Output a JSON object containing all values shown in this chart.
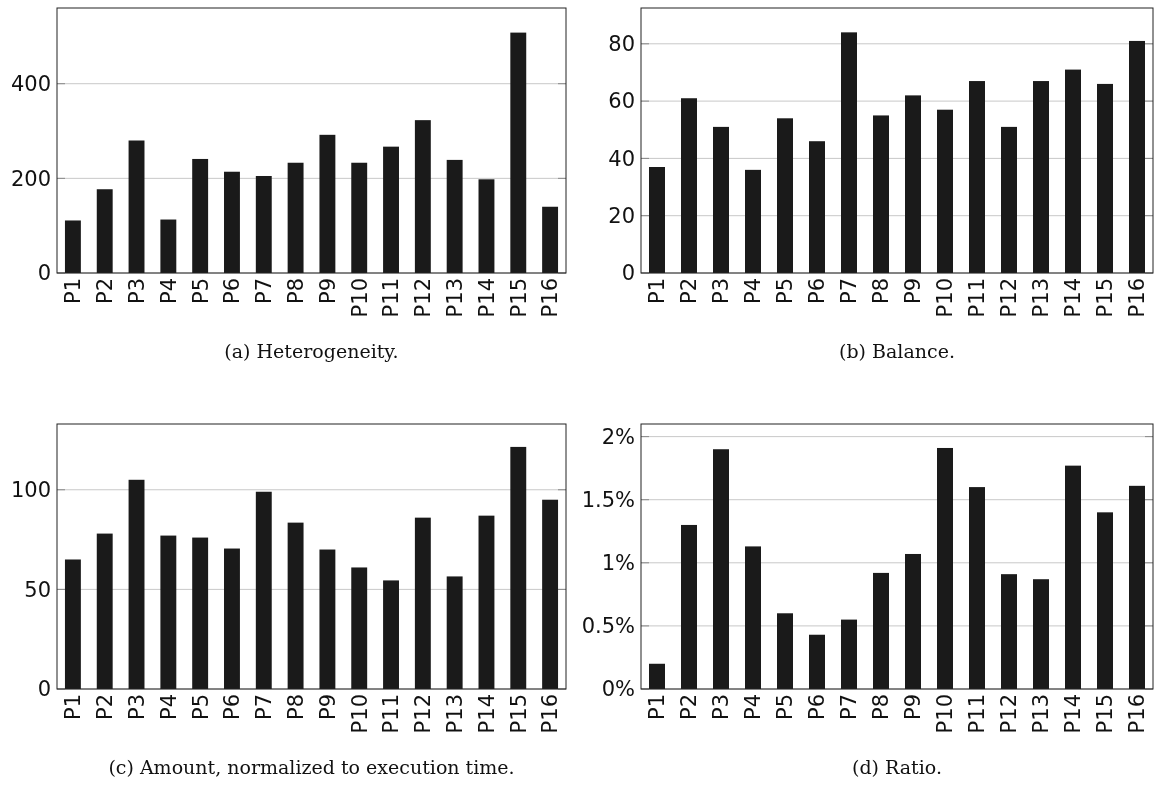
{
  "chart_data": [
    {
      "type": "bar",
      "title": "(a) Heterogeneity.",
      "categories": [
        "P1",
        "P2",
        "P3",
        "P4",
        "P5",
        "P6",
        "P7",
        "P8",
        "P9",
        "P10",
        "P11",
        "P12",
        "P13",
        "P14",
        "P15",
        "P16"
      ],
      "values": [
        111,
        177,
        280,
        113,
        241,
        214,
        205,
        233,
        292,
        233,
        267,
        323,
        239,
        198,
        508,
        140
      ],
      "color": "#1a1a1a",
      "ylim": [
        0,
        560
      ],
      "yticks": [
        0,
        200,
        400
      ],
      "grid": "y"
    },
    {
      "type": "bar",
      "title": "(b) Balance.",
      "categories": [
        "P1",
        "P2",
        "P3",
        "P4",
        "P5",
        "P6",
        "P7",
        "P8",
        "P9",
        "P10",
        "P11",
        "P12",
        "P13",
        "P14",
        "P15",
        "P16"
      ],
      "values": [
        37,
        61,
        51,
        36,
        54,
        46,
        84,
        55,
        62,
        57,
        67,
        51,
        67,
        71,
        66,
        81
      ],
      "color": "#1a1a1a",
      "ylim": [
        0,
        92.5
      ],
      "yticks": [
        0,
        20,
        40,
        60,
        80
      ],
      "grid": "y"
    },
    {
      "type": "bar",
      "title": "(c) Amount, normalized to execution time.",
      "categories": [
        "P1",
        "P2",
        "P3",
        "P4",
        "P5",
        "P6",
        "P7",
        "P8",
        "P9",
        "P10",
        "P11",
        "P12",
        "P13",
        "P14",
        "P15",
        "P16"
      ],
      "values": [
        65,
        78,
        105,
        77,
        76,
        70.5,
        99,
        83.5,
        70,
        61,
        54.5,
        86,
        56.5,
        87,
        121.5,
        95
      ],
      "color": "#1a1a1a",
      "ylim": [
        0,
        133
      ],
      "yticks": [
        0,
        50,
        100
      ],
      "grid": "y"
    },
    {
      "type": "bar",
      "title": "(d) Ratio.",
      "categories": [
        "P1",
        "P2",
        "P3",
        "P4",
        "P5",
        "P6",
        "P7",
        "P8",
        "P9",
        "P10",
        "P11",
        "P12",
        "P13",
        "P14",
        "P15",
        "P16"
      ],
      "values": [
        0.2,
        1.3,
        1.9,
        1.13,
        0.6,
        0.43,
        0.55,
        0.92,
        1.07,
        1.91,
        1.6,
        0.91,
        0.87,
        1.77,
        1.4,
        1.61
      ],
      "color": "#1a1a1a",
      "ylim": [
        0,
        2.1
      ],
      "yticks": [
        {
          "value": 0,
          "label": "0%"
        },
        {
          "value": 0.5,
          "label": "0.5%"
        },
        {
          "value": 1,
          "label": "1%"
        },
        {
          "value": 1.5,
          "label": "1.5%"
        },
        {
          "value": 2,
          "label": "2%"
        }
      ],
      "grid": "y"
    }
  ]
}
